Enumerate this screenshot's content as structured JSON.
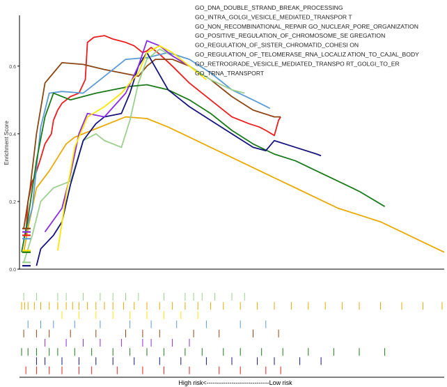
{
  "chart_data": {
    "type": "line",
    "title": "",
    "ylabel": "Enrichment Score",
    "xlabel": "High risk<------------------------------Low risk",
    "ylim": [
      0,
      0.75
    ],
    "y_ticks": [
      0.0,
      0.2,
      0.4,
      0.6
    ],
    "x_range": [
      0,
      1
    ],
    "grid": false,
    "legend_position": "top-right",
    "series": [
      {
        "name": "GO_DNA_DOUBLE_STRAND_BREAK_PROCESSING",
        "color": "#ee1c1c",
        "x": [
          0.015,
          0.02,
          0.03,
          0.035,
          0.048,
          0.06,
          0.075,
          0.08,
          0.09,
          0.1,
          0.12,
          0.14,
          0.155,
          0.16,
          0.175,
          0.2,
          0.22,
          0.25,
          0.27,
          0.29,
          0.3,
          0.31,
          0.33,
          0.36,
          0.4,
          0.45,
          0.5,
          0.54,
          0.565,
          0.58,
          0.6,
          0.61,
          0.615
        ],
        "y": [
          0.1,
          0.2,
          0.26,
          0.27,
          0.32,
          0.37,
          0.4,
          0.44,
          0.47,
          0.49,
          0.51,
          0.52,
          0.56,
          0.67,
          0.685,
          0.69,
          0.68,
          0.67,
          0.66,
          0.64,
          0.645,
          0.655,
          0.635,
          0.6,
          0.55,
          0.5,
          0.45,
          0.43,
          0.42,
          0.41,
          0.395,
          0.44,
          0.45
        ]
      },
      {
        "name": "GO_INTRA_GOLGI_VESICLE_MEDIATED_TRANSPOR T",
        "color": "#e8a900",
        "x": [
          0.01,
          0.02,
          0.04,
          0.07,
          0.09,
          0.11,
          0.13,
          0.17,
          0.21,
          0.25,
          0.3,
          0.35,
          0.4,
          0.45,
          0.5,
          0.55,
          0.6,
          0.65,
          0.7,
          0.75,
          0.8,
          0.85,
          0.9,
          0.95,
          1.0
        ],
        "y": [
          0.05,
          0.12,
          0.24,
          0.29,
          0.33,
          0.37,
          0.39,
          0.41,
          0.43,
          0.45,
          0.445,
          0.42,
          0.39,
          0.36,
          0.33,
          0.3,
          0.27,
          0.24,
          0.21,
          0.18,
          0.16,
          0.14,
          0.11,
          0.08,
          0.05
        ]
      },
      {
        "name": "GO_NON_RECOMBINATIONAL_REPAIR GO_NUCLEAR_PORE_ORGANIZATION",
        "color": "#8b4513",
        "x": [
          0.01,
          0.025,
          0.04,
          0.06,
          0.08,
          0.1,
          0.15,
          0.2,
          0.24,
          0.28,
          0.29,
          0.3,
          0.32,
          0.36,
          0.4,
          0.45,
          0.5,
          0.55,
          0.6,
          0.615
        ],
        "y": [
          0.12,
          0.24,
          0.4,
          0.55,
          0.58,
          0.61,
          0.605,
          0.59,
          0.58,
          0.57,
          0.585,
          0.6,
          0.62,
          0.62,
          0.6,
          0.56,
          0.51,
          0.47,
          0.45,
          0.45
        ]
      },
      {
        "name": "GO_POSITIVE_REGULATION_OF_CHROMOSOME_SE GREGATION",
        "color": "#5b9bd5",
        "x": [
          0.01,
          0.03,
          0.05,
          0.07,
          0.1,
          0.15,
          0.2,
          0.25,
          0.3,
          0.35,
          0.4,
          0.45,
          0.5,
          0.55,
          0.59
        ],
        "y": [
          0.09,
          0.18,
          0.42,
          0.52,
          0.525,
          0.52,
          0.57,
          0.62,
          0.625,
          0.64,
          0.62,
          0.58,
          0.53,
          0.5,
          0.475
        ]
      },
      {
        "name": "GO_REGULATION_OF_SISTER_CHROMATID_COHESI ON",
        "color": "#9bd08e",
        "x": [
          0.01,
          0.03,
          0.05,
          0.08,
          0.12,
          0.15,
          0.18,
          0.2,
          0.22,
          0.24,
          0.26,
          0.28,
          0.3,
          0.33,
          0.36,
          0.4,
          0.45,
          0.5,
          0.53
        ],
        "y": [
          0.02,
          0.1,
          0.2,
          0.24,
          0.26,
          0.38,
          0.4,
          0.38,
          0.37,
          0.36,
          0.44,
          0.55,
          0.62,
          0.65,
          0.63,
          0.6,
          0.56,
          0.53,
          0.52
        ]
      },
      {
        "name": "GO_REGULATION_OF_TELOMERASE_RNA_LOCALIZ ATION_TO_CAJAL_BODY",
        "color": "#1a7a1a",
        "x": [
          0.005,
          0.02,
          0.04,
          0.06,
          0.08,
          0.12,
          0.18,
          0.22,
          0.26,
          0.3,
          0.35,
          0.4,
          0.45,
          0.5,
          0.55,
          0.6,
          0.65,
          0.7,
          0.75,
          0.8,
          0.86
        ],
        "y": [
          0.05,
          0.15,
          0.32,
          0.45,
          0.52,
          0.5,
          0.52,
          0.53,
          0.54,
          0.545,
          0.53,
          0.5,
          0.46,
          0.41,
          0.37,
          0.34,
          0.32,
          0.29,
          0.26,
          0.23,
          0.185
        ]
      },
      {
        "name": "GO_RETROGRADE_VESICLE_MEDIATED_TRANSPO RT_GOLGI_TO_ER",
        "color": "#14147a",
        "x": [
          0.04,
          0.05,
          0.08,
          0.1,
          0.12,
          0.15,
          0.18,
          0.2,
          0.24,
          0.26,
          0.28,
          0.3,
          0.35,
          0.4,
          0.45,
          0.5,
          0.55,
          0.58,
          0.6,
          0.65,
          0.7,
          0.71
        ],
        "y": [
          0.01,
          0.06,
          0.1,
          0.14,
          0.25,
          0.38,
          0.43,
          0.45,
          0.46,
          0.52,
          0.6,
          0.64,
          0.53,
          0.48,
          0.44,
          0.4,
          0.36,
          0.35,
          0.38,
          0.36,
          0.34,
          0.335
        ]
      },
      {
        "name": "GO_TRNA_TRANSPORT",
        "color": "#8a2be2",
        "x": [
          0.06,
          0.1,
          0.12,
          0.14,
          0.16,
          0.2,
          0.25,
          0.28,
          0.3,
          0.33,
          0.36,
          0.4
        ],
        "y": [
          0.11,
          0.18,
          0.28,
          0.4,
          0.46,
          0.45,
          0.52,
          0.6,
          0.675,
          0.66,
          0.63,
          0.6
        ]
      },
      {
        "name": "",
        "color": "#ffe600",
        "x": [
          0.09,
          0.11,
          0.13,
          0.16,
          0.2,
          0.24,
          0.28,
          0.3,
          0.33,
          0.36,
          0.4,
          0.44
        ],
        "y": [
          0.055,
          0.22,
          0.36,
          0.45,
          0.48,
          0.52,
          0.58,
          0.64,
          0.66,
          0.64,
          0.6,
          0.56
        ]
      }
    ],
    "rug": {
      "rows": [
        {
          "color": "#9bd08e",
          "x": [
            0.01,
            0.04,
            0.09,
            0.11,
            0.15,
            0.19,
            0.22,
            0.25,
            0.28,
            0.34,
            0.39,
            0.41,
            0.43,
            0.46,
            0.5,
            0.53
          ]
        },
        {
          "color": "#e8a900",
          "x": [
            0.005,
            0.012,
            0.02,
            0.035,
            0.05,
            0.07,
            0.09,
            0.11,
            0.125,
            0.14,
            0.16,
            0.18,
            0.2,
            0.22,
            0.245,
            0.27,
            0.3,
            0.33,
            0.36,
            0.39,
            0.42,
            0.45,
            0.48,
            0.52,
            0.56,
            0.6,
            0.64,
            0.68,
            0.72,
            0.76,
            0.8,
            0.85,
            0.9,
            0.95,
            0.995
          ]
        },
        {
          "color": "#ffe600",
          "x": [
            0.1,
            0.14,
            0.18,
            0.22,
            0.26,
            0.3,
            0.34,
            0.38,
            0.42
          ]
        },
        {
          "color": "#5b9bd5",
          "x": [
            0.02,
            0.05,
            0.08,
            0.13,
            0.19,
            0.26,
            0.31,
            0.37,
            0.44,
            0.52,
            0.58
          ]
        },
        {
          "color": "#8b4513",
          "x": [
            0.01,
            0.04,
            0.07,
            0.12,
            0.18,
            0.25,
            0.29,
            0.33,
            0.41,
            0.47,
            0.55,
            0.61
          ]
        },
        {
          "color": "#8a2be2",
          "x": [
            0.06,
            0.11,
            0.15,
            0.19,
            0.24,
            0.29,
            0.31,
            0.36,
            0.4
          ]
        },
        {
          "color": "#1a7a1a",
          "x": [
            0.005,
            0.02,
            0.04,
            0.07,
            0.09,
            0.13,
            0.17,
            0.22,
            0.26,
            0.3,
            0.34,
            0.39,
            0.43,
            0.48,
            0.52,
            0.57,
            0.62,
            0.68,
            0.74,
            0.8,
            0.86
          ]
        },
        {
          "color": "#14147a",
          "x": [
            0.04,
            0.06,
            0.1,
            0.14,
            0.18,
            0.22,
            0.27,
            0.33,
            0.38,
            0.44,
            0.5,
            0.56,
            0.6,
            0.66,
            0.71
          ]
        },
        {
          "color": "#ee1c1c",
          "x": [
            0.015,
            0.04,
            0.07,
            0.1,
            0.14,
            0.17,
            0.23,
            0.29,
            0.34,
            0.4,
            0.47,
            0.52,
            0.58,
            0.615
          ]
        }
      ]
    }
  }
}
